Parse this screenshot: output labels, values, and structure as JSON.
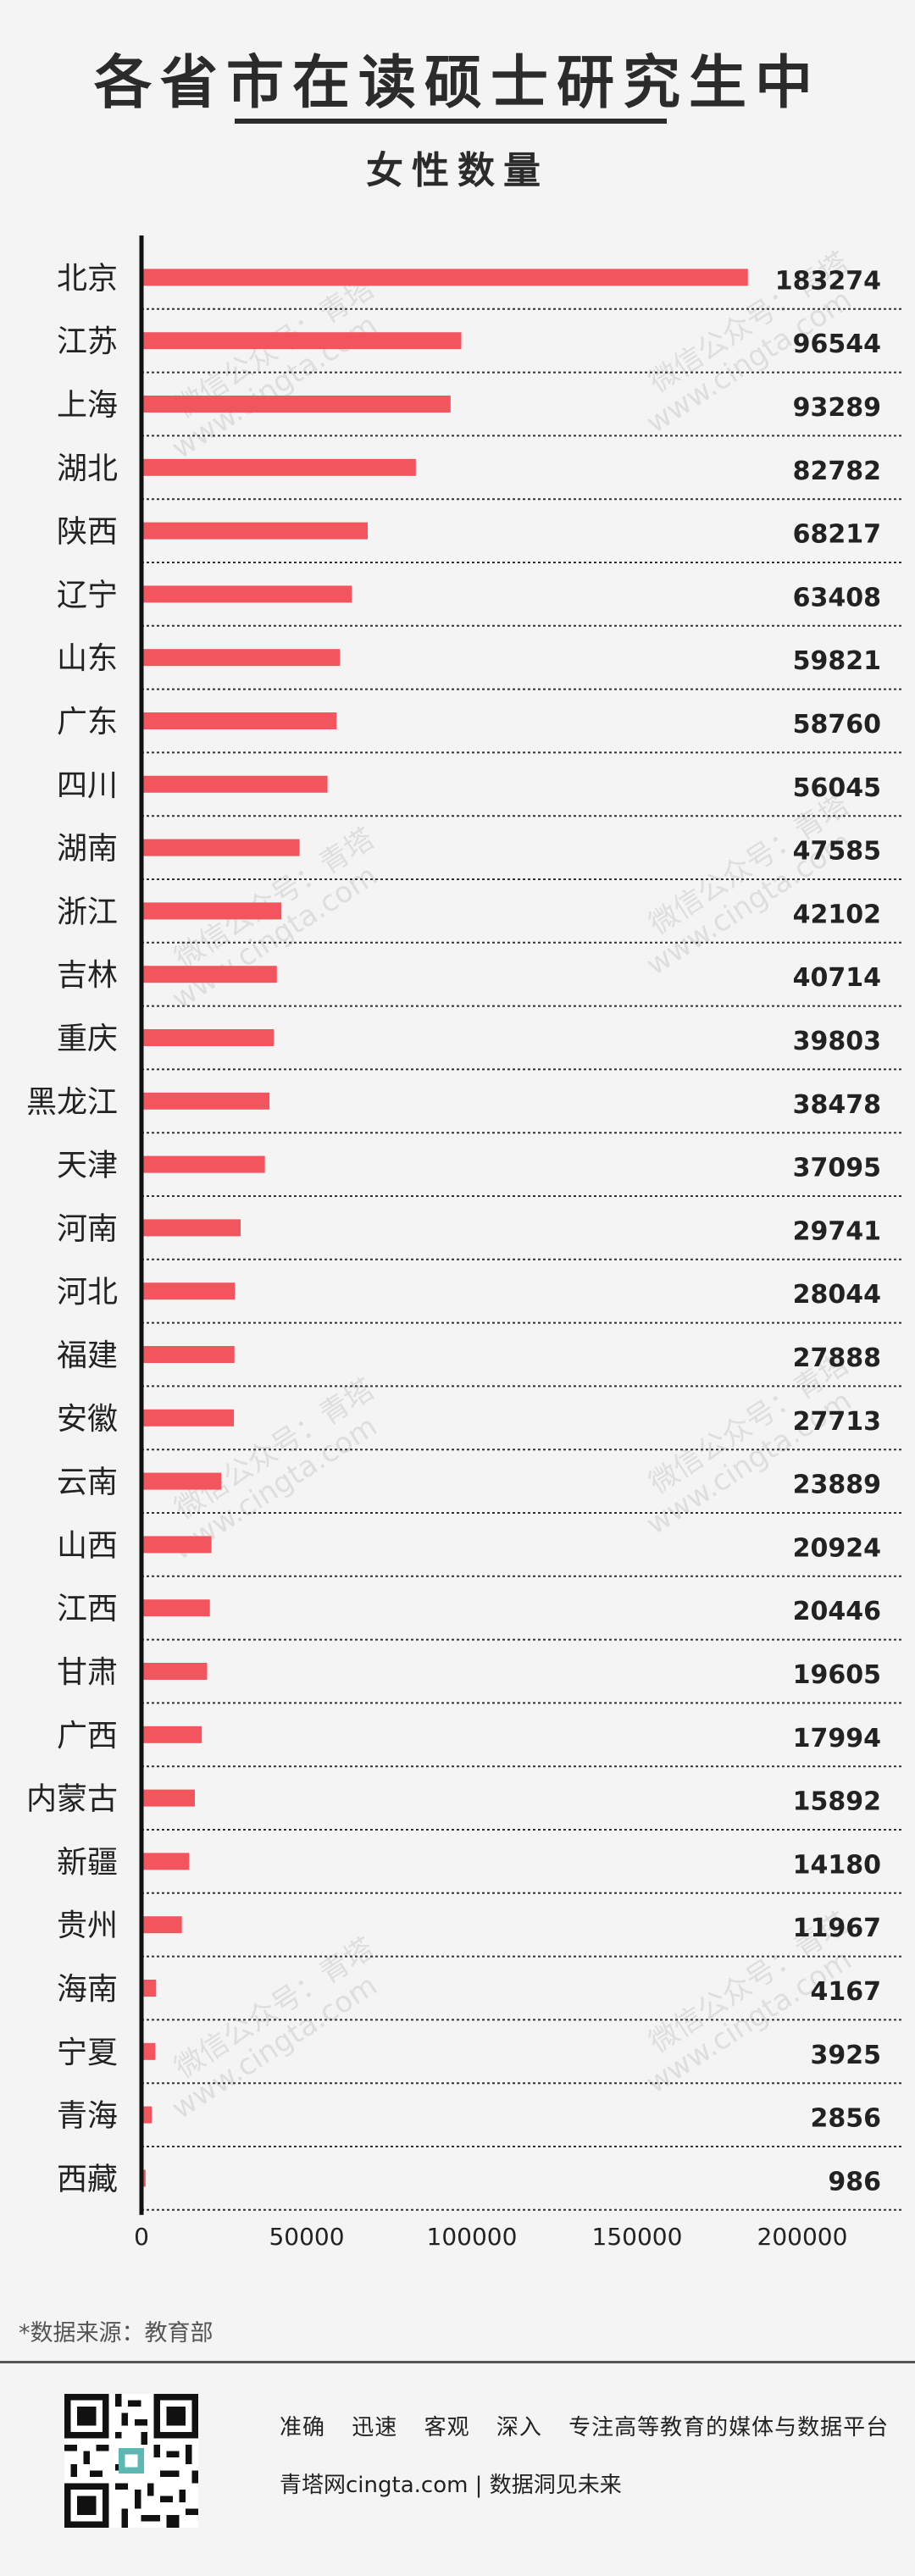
{
  "header": {
    "title": "各省市在读硕士研究生中",
    "subtitle": "女性数量"
  },
  "watermark": {
    "line1": "微信公众号：青塔",
    "line2": "www.cingta.com"
  },
  "colors": {
    "bar": "#f2555e",
    "axis": "#111111",
    "separator": "#333333",
    "background": "#f4f4f4"
  },
  "chart_data": {
    "type": "bar",
    "orientation": "horizontal",
    "categories": [
      "北京",
      "江苏",
      "上海",
      "湖北",
      "陕西",
      "辽宁",
      "山东",
      "广东",
      "四川",
      "湖南",
      "浙江",
      "吉林",
      "重庆",
      "黑龙江",
      "天津",
      "河南",
      "河北",
      "福建",
      "安徽",
      "云南",
      "山西",
      "江西",
      "甘肃",
      "广西",
      "内蒙古",
      "新疆",
      "贵州",
      "海南",
      "宁夏",
      "青海",
      "西藏"
    ],
    "values": [
      183274,
      96544,
      93289,
      82782,
      68217,
      63408,
      59821,
      58760,
      56045,
      47585,
      42102,
      40714,
      39803,
      38478,
      37095,
      29741,
      28044,
      27888,
      27713,
      23889,
      20924,
      20446,
      19605,
      17994,
      15892,
      14180,
      11967,
      4167,
      3925,
      2856,
      986
    ],
    "value_labels": [
      "183274",
      "96544",
      "93289",
      "82782",
      "68217",
      "63408",
      "59821",
      "58760",
      "56045",
      "47585",
      "42102",
      "40714",
      "39803",
      "38478",
      "37095",
      "29741",
      "28044",
      "27888",
      "27713",
      "23889",
      "20924",
      "20446",
      "19605",
      "17994",
      "15892",
      "14180",
      "11967",
      "4167",
      "3925",
      "2856",
      "986"
    ],
    "xlim": [
      0,
      200000
    ],
    "xticks": [
      0,
      50000,
      100000,
      150000,
      200000
    ],
    "xtick_labels": [
      "0",
      "50000",
      "100000",
      "150000",
      "200000"
    ],
    "grid": false,
    "legend": "none"
  },
  "footer": {
    "source": "*数据来源：教育部",
    "slogan": [
      "准确",
      "迅速",
      "客观",
      "深入",
      "专注高等教育的媒体与数据平台"
    ],
    "site": "青塔网cingta.com | 数据洞见未来"
  }
}
